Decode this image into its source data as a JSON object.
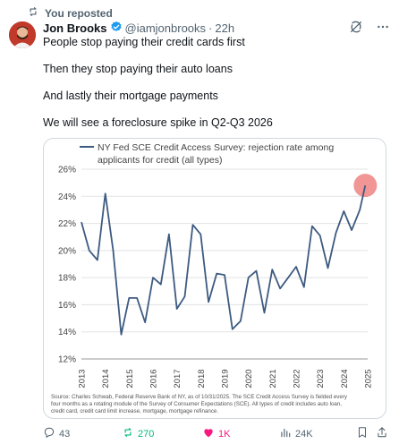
{
  "repost_label": "You reposted",
  "author": {
    "name": "Jon Brooks",
    "handle": "@iamjonbrooks",
    "separator": "·",
    "time": "22h"
  },
  "tweet_lines": [
    "People stop paying their credit cards first",
    "Then they stop paying their auto loans",
    "And lastly their mortgage payments",
    "We will see a foreclosure spike in Q2-Q3 2026"
  ],
  "actions": {
    "replies": "43",
    "reposts": "270",
    "likes": "1K",
    "views": "24K"
  },
  "colors": {
    "line": "#3d5a80",
    "highlight": "#ef8a8a",
    "repost": "#00ba7c",
    "like": "#f91880",
    "muted": "#536471"
  },
  "chart_data": {
    "type": "line",
    "legend": [
      "NY Fed SCE Credit Access Survey: rejection rate among",
      "applicants for credit (all types)"
    ],
    "source": [
      "Source: Charles Schwab, Federal Reserve Bank of NY, as of 10/31/2025. The SCE Credit Access Survey is fielded every",
      "four months as a rotating module of the Survey of Consumer Expectations (SCE). All types of credit includes auto loan,",
      "credit card, credit card limit increase, mortgage, mortgage refinance."
    ],
    "y_ticks": [
      "26%",
      "24%",
      "22%",
      "20%",
      "18%",
      "16%",
      "14%",
      "12%"
    ],
    "x_ticks": [
      "2013",
      "2014",
      "2015",
      "2016",
      "2017",
      "2018",
      "2019",
      "2020",
      "2021",
      "2022",
      "2023",
      "2024",
      "2025"
    ],
    "ylim": [
      12,
      26
    ],
    "xlim": [
      2013,
      2025
    ],
    "x": [
      2013.0,
      2013.33,
      2013.67,
      2014.0,
      2014.33,
      2014.67,
      2015.0,
      2015.33,
      2015.67,
      2016.0,
      2016.33,
      2016.67,
      2017.0,
      2017.33,
      2017.67,
      2018.0,
      2018.33,
      2018.67,
      2019.0,
      2019.33,
      2019.67,
      2020.0,
      2020.33,
      2020.67,
      2021.0,
      2021.33,
      2021.67,
      2022.0,
      2022.33,
      2022.67,
      2023.0,
      2023.33,
      2023.67,
      2024.0,
      2024.33,
      2024.67,
      2024.9
    ],
    "y": [
      22.1,
      20.0,
      19.3,
      24.2,
      20.0,
      13.8,
      16.5,
      16.5,
      14.7,
      18.0,
      17.5,
      21.2,
      15.7,
      16.6,
      21.9,
      21.2,
      16.2,
      18.3,
      18.2,
      14.2,
      14.8,
      18.0,
      18.5,
      15.4,
      18.6,
      17.2,
      18.0,
      18.8,
      17.3,
      21.8,
      21.1,
      18.7,
      21.3,
      22.9,
      21.5,
      23.0,
      24.8
    ],
    "highlight_point": {
      "x": 2024.9,
      "y": 24.8
    },
    "grid": "horizontal"
  }
}
